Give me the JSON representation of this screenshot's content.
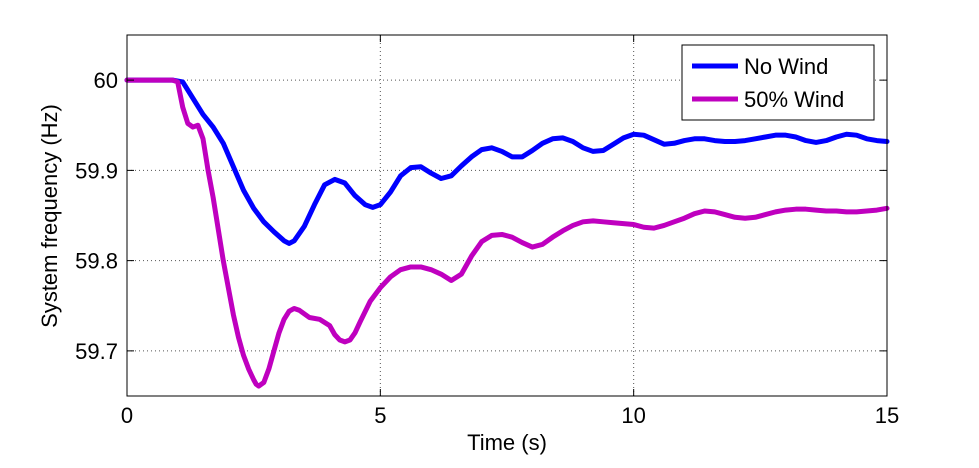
{
  "chart_data": {
    "type": "line",
    "xlabel": "Time (s)",
    "ylabel": "System frequency (Hz)",
    "xlim": [
      0,
      15
    ],
    "ylim": [
      59.65,
      60.05
    ],
    "xticks": [
      0,
      5,
      10,
      15
    ],
    "xtick_labels": [
      "0",
      "5",
      "10",
      "15"
    ],
    "yticks": [
      59.7,
      59.8,
      59.9,
      60
    ],
    "ytick_labels": [
      "59.7",
      "59.8",
      "59.9",
      "60"
    ],
    "grid": true,
    "legend_position": "top-right",
    "series": [
      {
        "name": "No Wind",
        "color": "#0000ff",
        "x": [
          0,
          0.5,
          0.9,
          1.1,
          1.3,
          1.5,
          1.7,
          1.9,
          2.1,
          2.3,
          2.5,
          2.7,
          2.9,
          3.1,
          3.2,
          3.3,
          3.5,
          3.7,
          3.9,
          4.1,
          4.3,
          4.5,
          4.7,
          4.85,
          5.0,
          5.2,
          5.4,
          5.6,
          5.8,
          6.0,
          6.2,
          6.4,
          6.6,
          6.8,
          7.0,
          7.2,
          7.4,
          7.6,
          7.8,
          8.0,
          8.2,
          8.4,
          8.6,
          8.8,
          9.0,
          9.2,
          9.4,
          9.6,
          9.8,
          10.0,
          10.2,
          10.4,
          10.6,
          10.8,
          11.0,
          11.2,
          11.4,
          11.6,
          11.8,
          12.0,
          12.2,
          12.4,
          12.6,
          12.8,
          13.0,
          13.2,
          13.4,
          13.6,
          13.8,
          14.0,
          14.2,
          14.4,
          14.6,
          14.8,
          15.0
        ],
        "values": [
          60.0,
          60.0,
          60.0,
          59.998,
          59.98,
          59.962,
          59.948,
          59.93,
          59.904,
          59.878,
          59.858,
          59.843,
          59.832,
          59.822,
          59.819,
          59.822,
          59.838,
          59.862,
          59.884,
          59.89,
          59.886,
          59.872,
          59.862,
          59.859,
          59.862,
          59.876,
          59.894,
          59.903,
          59.904,
          59.897,
          59.891,
          59.894,
          59.905,
          59.915,
          59.923,
          59.925,
          59.921,
          59.915,
          59.915,
          59.922,
          59.93,
          59.935,
          59.936,
          59.932,
          59.925,
          59.921,
          59.922,
          59.929,
          59.936,
          59.94,
          59.939,
          59.934,
          59.929,
          59.93,
          59.933,
          59.935,
          59.935,
          59.933,
          59.932,
          59.932,
          59.933,
          59.935,
          59.937,
          59.939,
          59.939,
          59.937,
          59.933,
          59.931,
          59.933,
          59.937,
          59.94,
          59.939,
          59.935,
          59.933,
          59.932
        ]
      },
      {
        "name": "50% Wind",
        "color": "#bf00bf",
        "x": [
          0,
          0.5,
          0.9,
          1.0,
          1.1,
          1.2,
          1.3,
          1.4,
          1.5,
          1.6,
          1.7,
          1.8,
          1.9,
          2.0,
          2.1,
          2.2,
          2.3,
          2.4,
          2.5,
          2.55,
          2.6,
          2.7,
          2.8,
          2.9,
          3.0,
          3.1,
          3.2,
          3.3,
          3.4,
          3.6,
          3.8,
          4.0,
          4.1,
          4.2,
          4.3,
          4.4,
          4.5,
          4.6,
          4.8,
          5.0,
          5.2,
          5.4,
          5.6,
          5.8,
          6.0,
          6.2,
          6.4,
          6.6,
          6.8,
          7.0,
          7.2,
          7.4,
          7.6,
          7.8,
          8.0,
          8.2,
          8.4,
          8.6,
          8.8,
          9.0,
          9.2,
          9.4,
          9.6,
          9.8,
          10.0,
          10.2,
          10.4,
          10.6,
          10.8,
          11.0,
          11.2,
          11.4,
          11.6,
          11.8,
          12.0,
          12.2,
          12.4,
          12.6,
          12.8,
          13.0,
          13.2,
          13.4,
          13.6,
          13.8,
          14.0,
          14.2,
          14.4,
          14.6,
          14.8,
          15.0
        ],
        "values": [
          60.0,
          60.0,
          60.0,
          59.998,
          59.97,
          59.952,
          59.948,
          59.95,
          59.935,
          59.9,
          59.87,
          59.835,
          59.8,
          59.77,
          59.74,
          59.715,
          59.695,
          59.68,
          59.668,
          59.663,
          59.661,
          59.665,
          59.68,
          59.7,
          59.72,
          59.735,
          59.744,
          59.747,
          59.745,
          59.737,
          59.735,
          59.728,
          59.718,
          59.712,
          59.71,
          59.712,
          59.72,
          59.732,
          59.755,
          59.77,
          59.782,
          59.79,
          59.793,
          59.793,
          59.79,
          59.785,
          59.778,
          59.785,
          59.805,
          59.821,
          59.828,
          59.829,
          59.826,
          59.82,
          59.815,
          59.818,
          59.826,
          59.833,
          59.839,
          59.843,
          59.844,
          59.843,
          59.842,
          59.841,
          59.84,
          59.837,
          59.836,
          59.839,
          59.843,
          59.847,
          59.852,
          59.855,
          59.854,
          59.851,
          59.848,
          59.847,
          59.848,
          59.851,
          59.854,
          59.856,
          59.857,
          59.857,
          59.856,
          59.855,
          59.855,
          59.854,
          59.854,
          59.855,
          59.856,
          59.858
        ]
      }
    ]
  }
}
